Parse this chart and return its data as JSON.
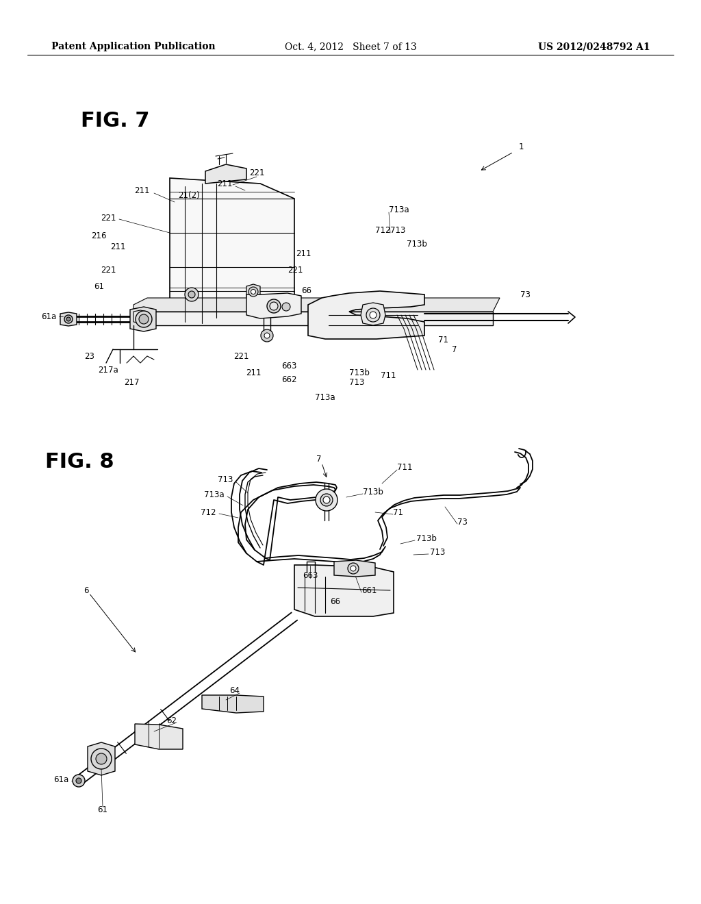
{
  "background_color": "#ffffff",
  "header_left": "Patent Application Publication",
  "header_middle": "Oct. 4, 2012   Sheet 7 of 13",
  "header_right": "US 2012/0248792 A1",
  "line_color": "#000000",
  "text_color": "#000000",
  "ref_fontsize": 8.5,
  "fig7_label": "FIG. 7",
  "fig8_label": "FIG. 8"
}
